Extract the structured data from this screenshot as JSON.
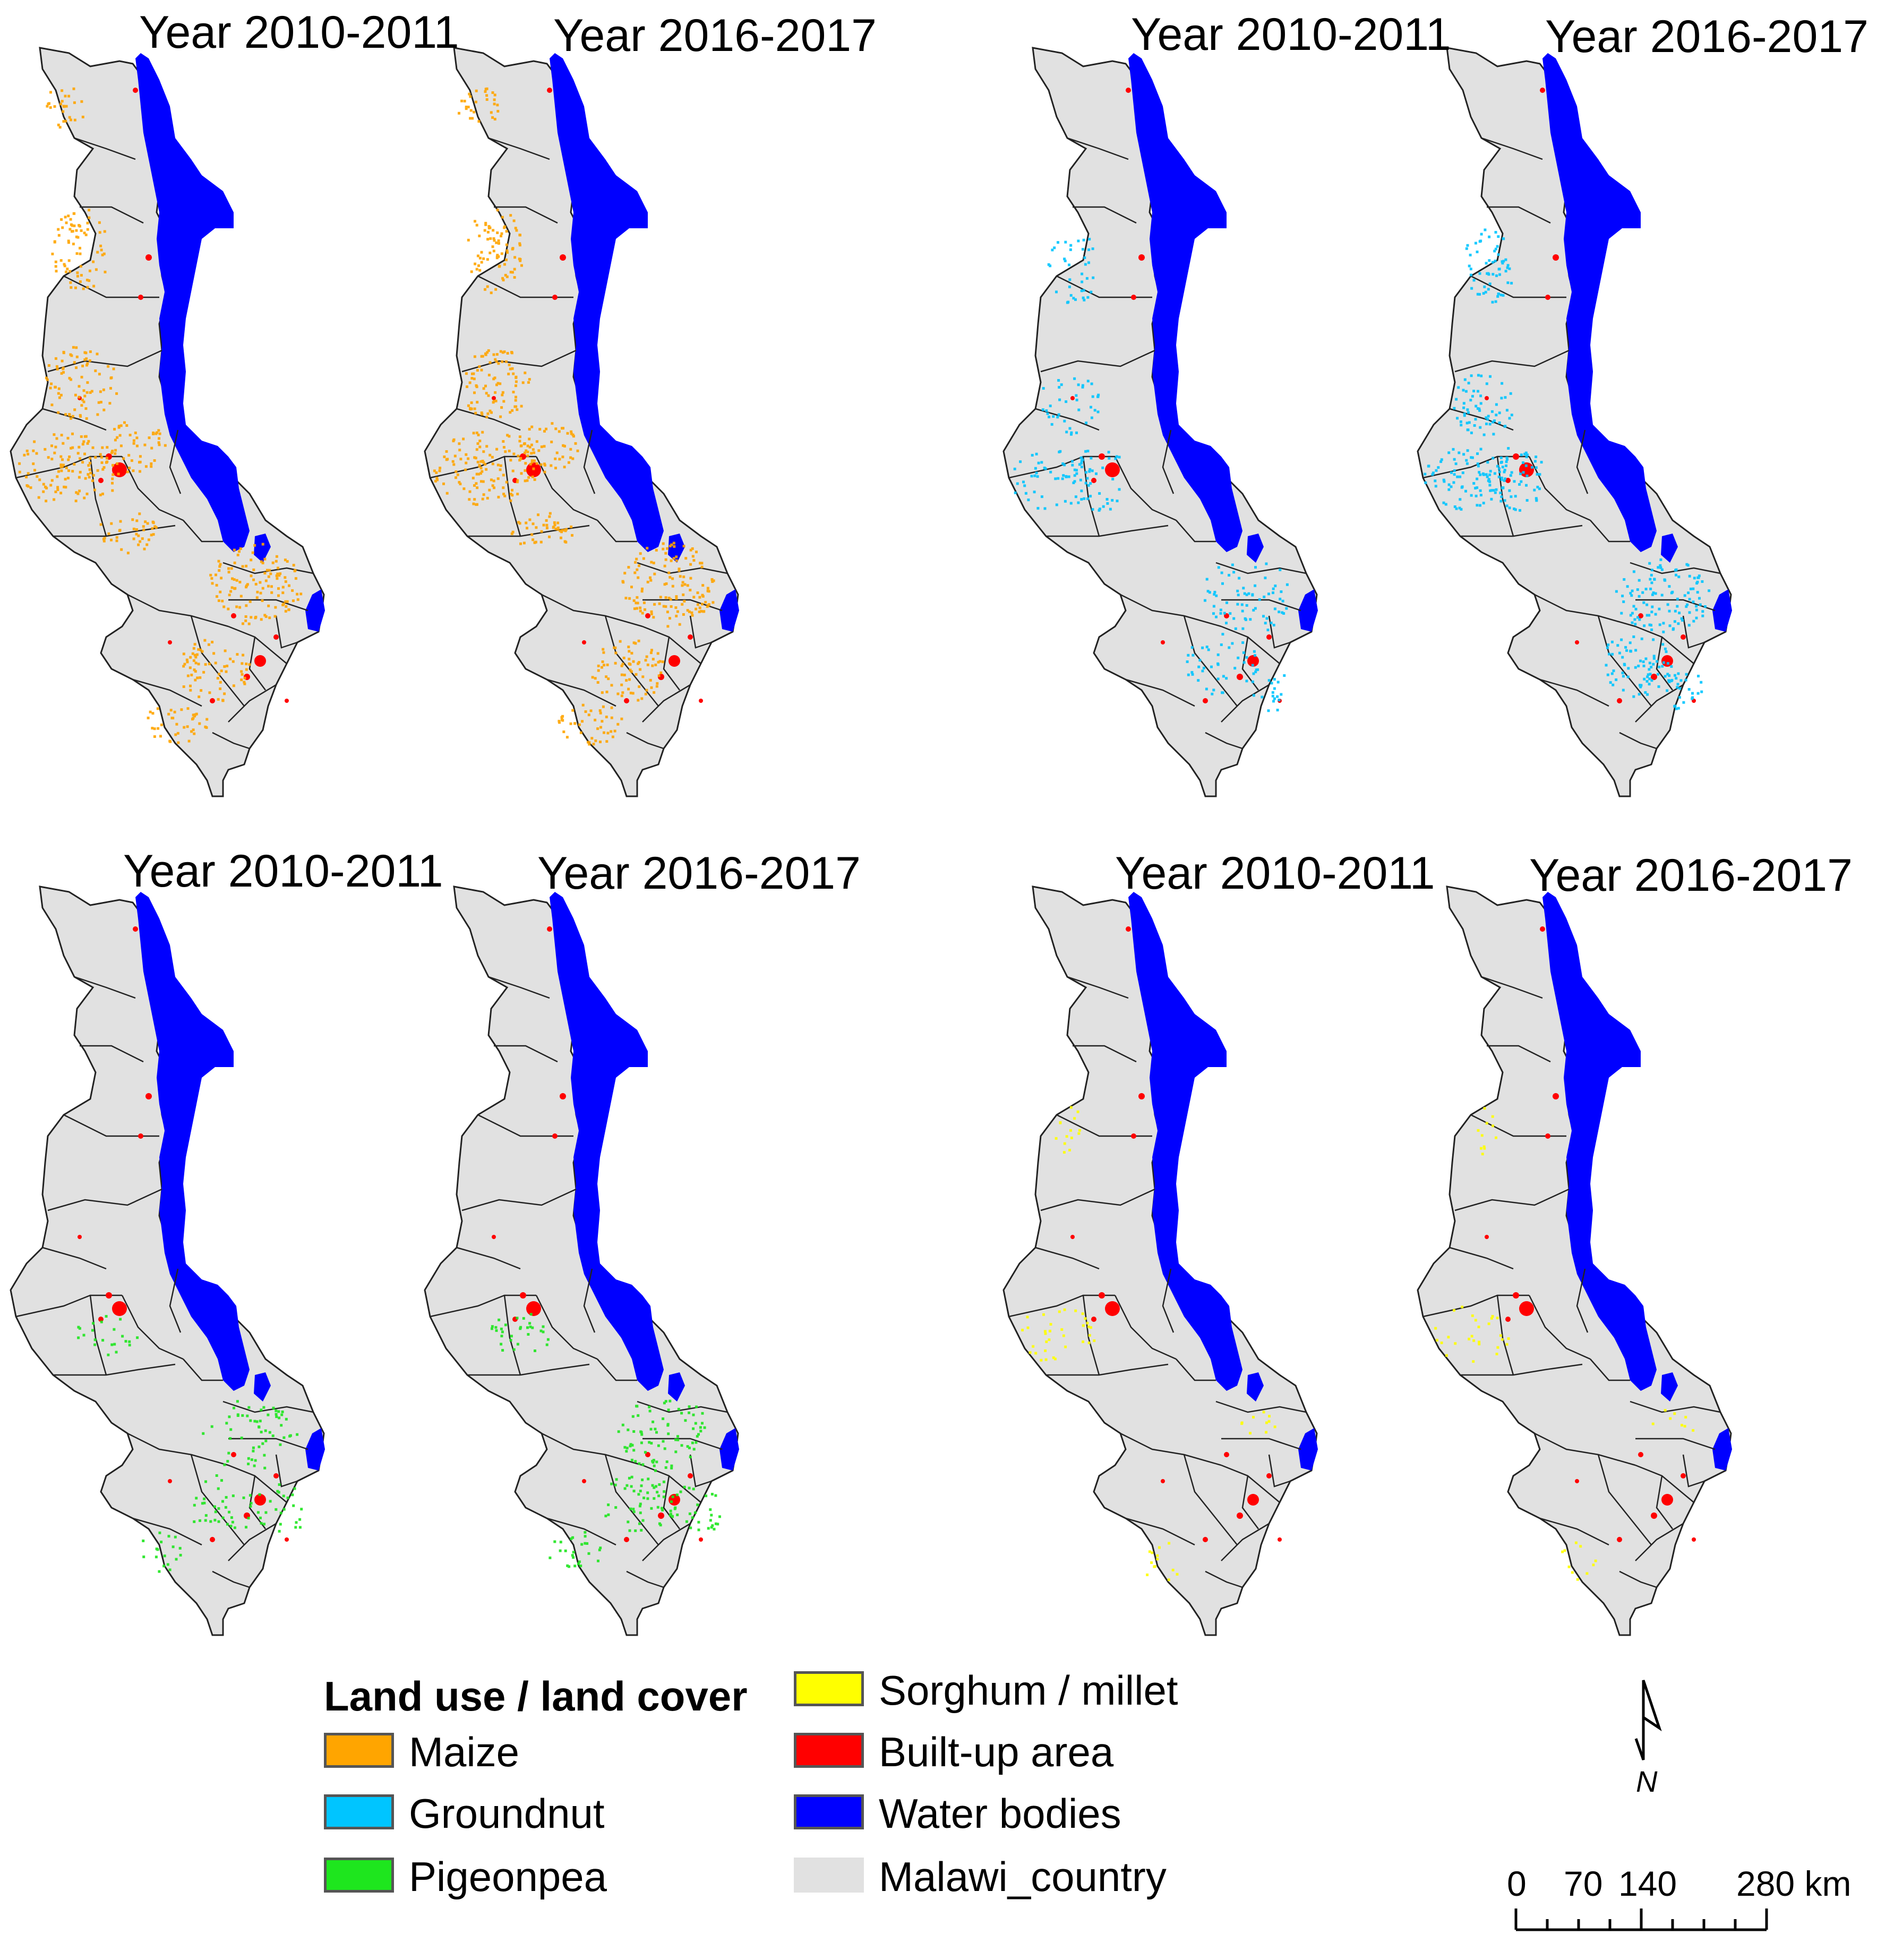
{
  "panels": [
    {
      "title": "Year 2010-2011",
      "crop": "maize"
    },
    {
      "title": "Year 2016-2017",
      "crop": "maize"
    },
    {
      "title": "Year 2010-2011",
      "crop": "groundnut"
    },
    {
      "title": "Year 2016-2017",
      "crop": "groundnut"
    },
    {
      "title": "Year 2010-2011",
      "crop": "pigeonpea"
    },
    {
      "title": "Year 2016-2017",
      "crop": "pigeonpea"
    },
    {
      "title": "Year 2010-2011",
      "crop": "sorghum"
    },
    {
      "title": "Year 2016-2017",
      "crop": "sorghum"
    }
  ],
  "legend": {
    "title": "Land use / land cover",
    "items": [
      {
        "label": "Maize",
        "color": "#FFA500"
      },
      {
        "label": "Groundnut",
        "color": "#00C5FF"
      },
      {
        "label": "Pigeonpea",
        "color": "#1EE61E"
      },
      {
        "label": "Sorghum / millet",
        "color": "#FFFF00"
      },
      {
        "label": "Built-up area",
        "color": "#FF0000"
      },
      {
        "label": "Water bodies",
        "color": "#0000FF"
      },
      {
        "label": "Malawi_country",
        "color": "#E1E1E1"
      }
    ]
  },
  "north_arrow": {
    "label": "N"
  },
  "scale_bar": {
    "labels": [
      "0",
      "70",
      "140",
      "280 km"
    ]
  }
}
